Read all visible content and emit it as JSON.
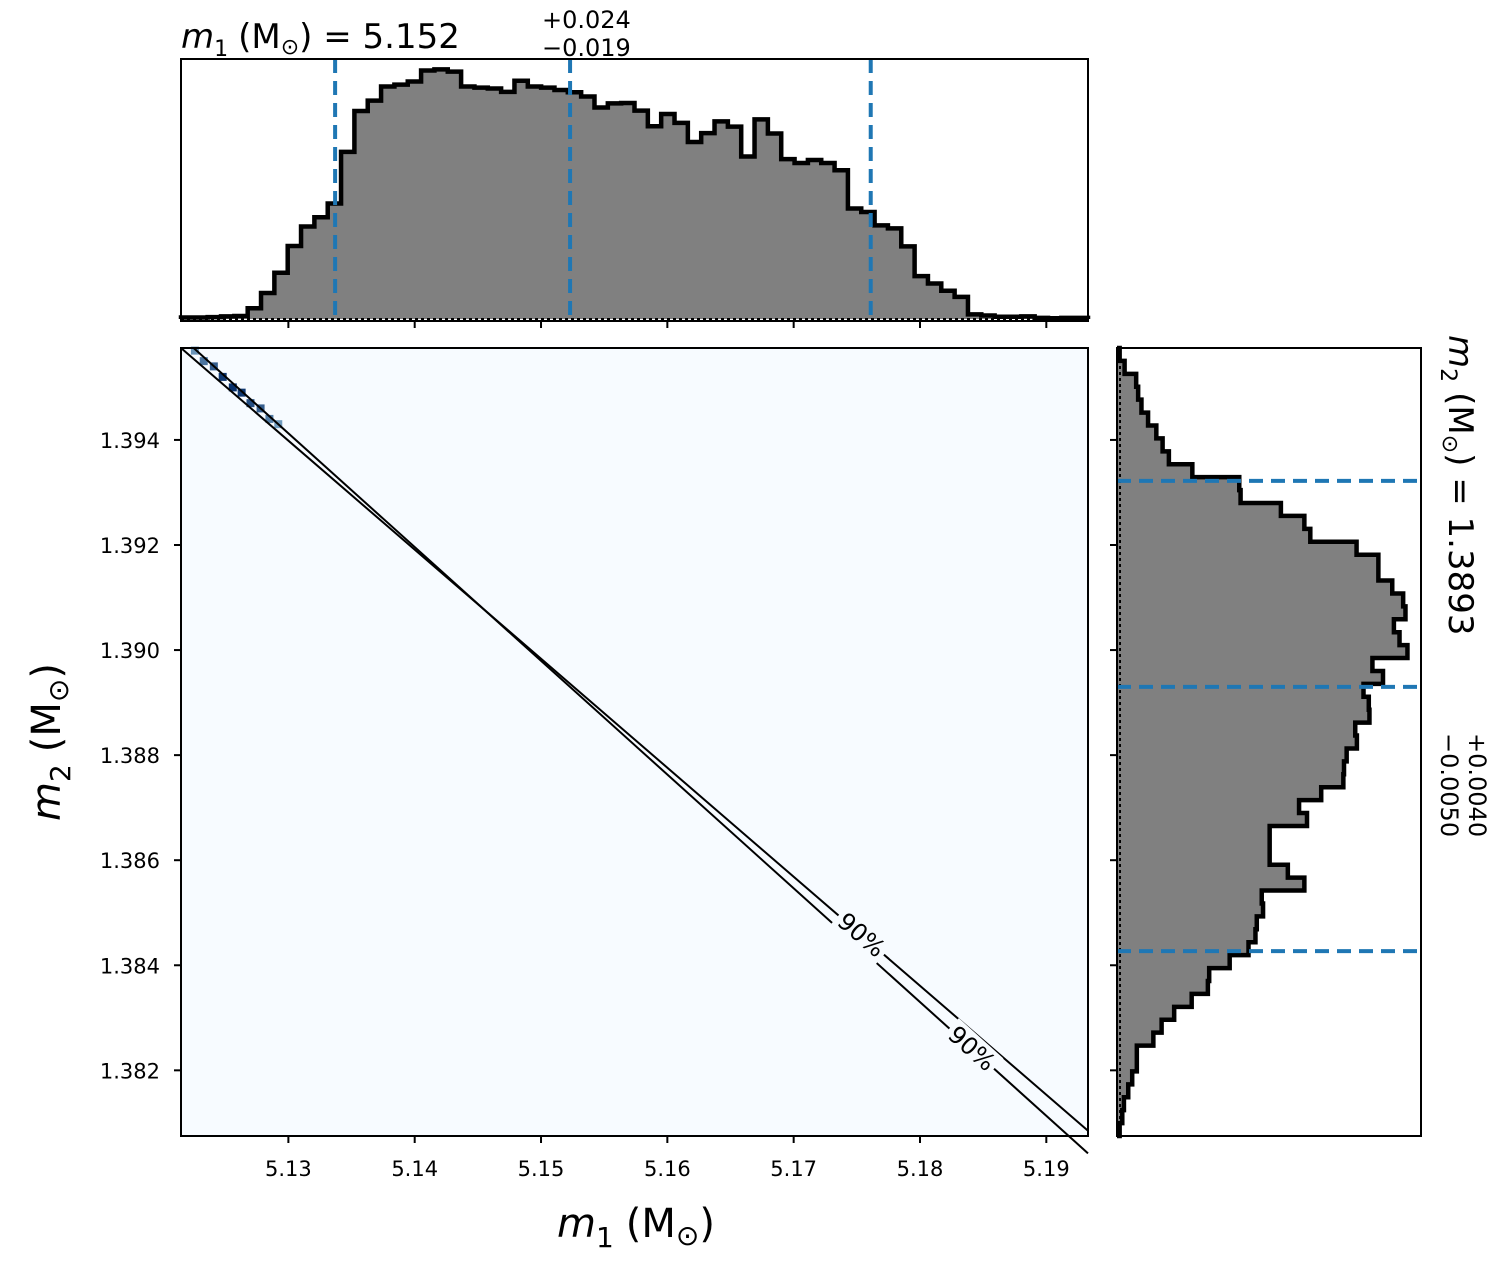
{
  "chart_data": {
    "type": "corner",
    "parameters": [
      {
        "symbol": "m",
        "subscript": "1",
        "unit": "(M",
        "unit_sub": "⊙",
        "unit_close": ")",
        "median": "5.152",
        "plus": "+0.024",
        "minus": "−0.019",
        "title_eq": " = 5.152"
      },
      {
        "symbol": "m",
        "subscript": "2",
        "unit": "(M",
        "unit_sub": "⊙",
        "unit_close": ")",
        "median": "1.3893",
        "plus": "+0.0040",
        "minus": "−0.0050",
        "title_eq": " = 1.3893"
      }
    ],
    "m1_histogram": {
      "range": [
        5.1215,
        5.1933
      ],
      "quantile_lines": [
        5.1337,
        5.1523,
        5.1761
      ],
      "counts": [
        0.4,
        0.4,
        0.5,
        0.7,
        0.8,
        2.8,
        6.8,
        12.1,
        19.1,
        24.2,
        26.6,
        30.2,
        43.7,
        54.4,
        57.1,
        60.8,
        61.3,
        62.1,
        65.0,
        65.3,
        64.7,
        60.8,
        60.5,
        60.3,
        59.4,
        62.3,
        60.8,
        60.5,
        59.9,
        59.3,
        58.2,
        55.3,
        56.4,
        56.5,
        54.5,
        50.4,
        53.6,
        51.3,
        46.3,
        48.6,
        51.7,
        50.3,
        42.5,
        52.2,
        48.5,
        41.8,
        40.8,
        41.6,
        40.8,
        38.9,
        28.9,
        28.0,
        24.5,
        23.7,
        19.0,
        11.2,
        9.3,
        7.4,
        5.8,
        1.2,
        0.9,
        0.6,
        0.6,
        0.7,
        0.3,
        0.2,
        0.3,
        0.3
      ]
    },
    "m2_histogram": {
      "range": [
        1.38075,
        1.39575
      ],
      "quantile_lines": [
        1.38427,
        1.3893,
        1.39322
      ],
      "counts": [
        0.8,
        1.6,
        2.1,
        3.4,
        4.6,
        6.0,
        6.0,
        11.0,
        13.5,
        17.3,
        22.6,
        27.5,
        27.9,
        34.1,
        39.8,
        41.9,
        42.3,
        44.2,
        43.8,
        56.7,
        51.7,
        46.2,
        46.2,
        46.2,
        57.5,
        55.1,
        61.8,
        68.5,
        68.7,
        69.5,
        72.6,
        72.1,
        76.4,
        76.2,
        74.6,
        80.5,
        77.3,
        87.9,
        85.5,
        83.8,
        87.3,
        86.6,
        83.3,
        79.1,
        79.1,
        72.5,
        58.5,
        56.7,
        49.6,
        37.4,
        37.0,
        22.8,
        15.7,
        13.8,
        11.9,
        9.4,
        7.4,
        6.4,
        5.8,
        2.3,
        0.8
      ]
    },
    "joint": {
      "xlim": [
        5.1215,
        5.1933
      ],
      "ylim": [
        1.38075,
        1.39575
      ],
      "contour_level": "90%",
      "contour_labels": [
        "90%",
        "90%"
      ],
      "contour_upper": [
        [
          5.1215,
          1.39575
        ],
        [
          5.1933,
          1.38085
        ]
      ],
      "contour_lower": [
        [
          5.1225,
          1.39575
        ],
        [
          5.1933,
          1.38042
        ]
      ],
      "density_cells": [
        {
          "x": 5.1226,
          "y": 1.3957,
          "v": 0.35
        },
        {
          "x": 5.1233,
          "y": 1.3955,
          "v": 0.55
        },
        {
          "x": 5.1241,
          "y": 1.3954,
          "v": 0.7
        },
        {
          "x": 5.1248,
          "y": 1.3952,
          "v": 0.95
        },
        {
          "x": 5.1256,
          "y": 1.395,
          "v": 1.0
        },
        {
          "x": 5.1263,
          "y": 1.3949,
          "v": 0.95
        },
        {
          "x": 5.127,
          "y": 1.3947,
          "v": 0.8
        },
        {
          "x": 5.1278,
          "y": 1.3946,
          "v": 0.7
        },
        {
          "x": 5.1285,
          "y": 1.3944,
          "v": 0.5
        },
        {
          "x": 5.1292,
          "y": 1.3943,
          "v": 0.3
        }
      ]
    },
    "x_ticks": [
      "5.13",
      "5.14",
      "5.15",
      "5.16",
      "5.17",
      "5.18",
      "5.19"
    ],
    "x_tick_values": [
      5.13,
      5.14,
      5.15,
      5.16,
      5.17,
      5.18,
      5.19
    ],
    "y_ticks": [
      "1.382",
      "1.384",
      "1.386",
      "1.388",
      "1.390",
      "1.392",
      "1.394"
    ],
    "y_tick_values": [
      1.382,
      1.384,
      1.386,
      1.388,
      1.39,
      1.392,
      1.394
    ],
    "colors": {
      "hist_fill": "#808080",
      "hist_edge": "#000000",
      "quantile": "#1f77b4",
      "joint_bg": "#f7fbff",
      "density_dark": "#08306b",
      "density_light": "#9ecae1"
    }
  }
}
